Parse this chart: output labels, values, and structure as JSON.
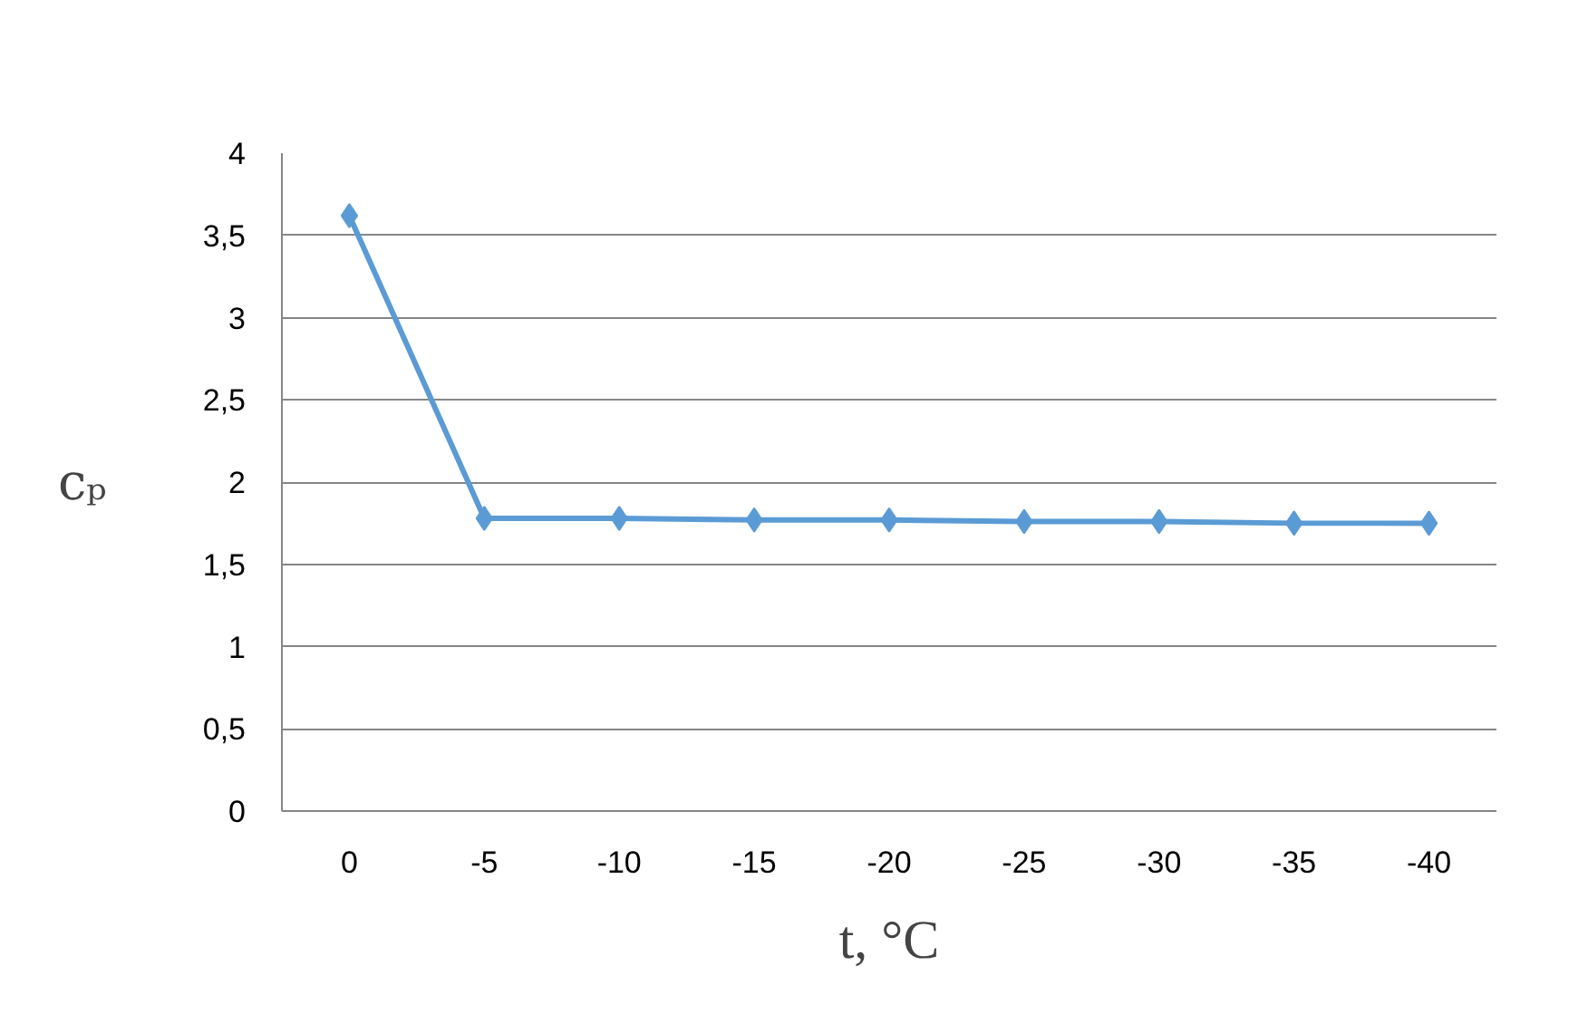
{
  "chart_data": {
    "type": "line",
    "xlabel": "t, °C",
    "ylabel": "cₚ",
    "categories": [
      "0",
      "-5",
      "-10",
      "-15",
      "-20",
      "-25",
      "-30",
      "-35",
      "-40"
    ],
    "series": [
      {
        "color": "#5b9bd5",
        "values": [
          3.62,
          1.78,
          1.78,
          1.77,
          1.77,
          1.76,
          1.76,
          1.75,
          1.75
        ]
      }
    ],
    "ylim": [
      0,
      4
    ],
    "yticks": [
      0,
      {
        "value": 0.5,
        "label": "0,5"
      },
      1,
      {
        "value": 1.5,
        "label": "1,5"
      },
      2,
      {
        "value": 2.5,
        "label": "2,5"
      },
      3,
      {
        "value": 3.5,
        "label": "3,5"
      },
      4
    ],
    "grid": "y",
    "marker": "diamond"
  }
}
